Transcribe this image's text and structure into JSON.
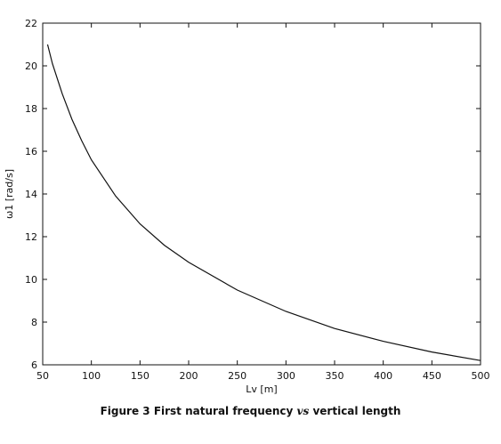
{
  "chart_data": {
    "type": "line",
    "title": "",
    "xlabel": "Lv [m]",
    "ylabel": "ω1 [rad/s]",
    "xlim": [
      50,
      500
    ],
    "ylim": [
      6,
      22
    ],
    "x_ticks": [
      50,
      100,
      150,
      200,
      250,
      300,
      350,
      400,
      450,
      500
    ],
    "y_ticks": [
      6,
      8,
      10,
      12,
      14,
      16,
      18,
      20,
      22
    ],
    "grid": false,
    "series": [
      {
        "x": [
          55,
          60,
          70,
          80,
          90,
          100,
          125,
          150,
          175,
          200,
          250,
          300,
          350,
          400,
          450,
          500
        ],
        "y": [
          21.0,
          20.1,
          18.7,
          17.5,
          16.5,
          15.6,
          13.9,
          12.6,
          11.6,
          10.8,
          9.5,
          8.5,
          7.7,
          7.1,
          6.6,
          6.2
        ]
      }
    ],
    "line_color": "#111111"
  },
  "caption": {
    "prefix": "Figure 3 First natural frequency",
    "vs": "vs",
    "suffix": "vertical length"
  }
}
